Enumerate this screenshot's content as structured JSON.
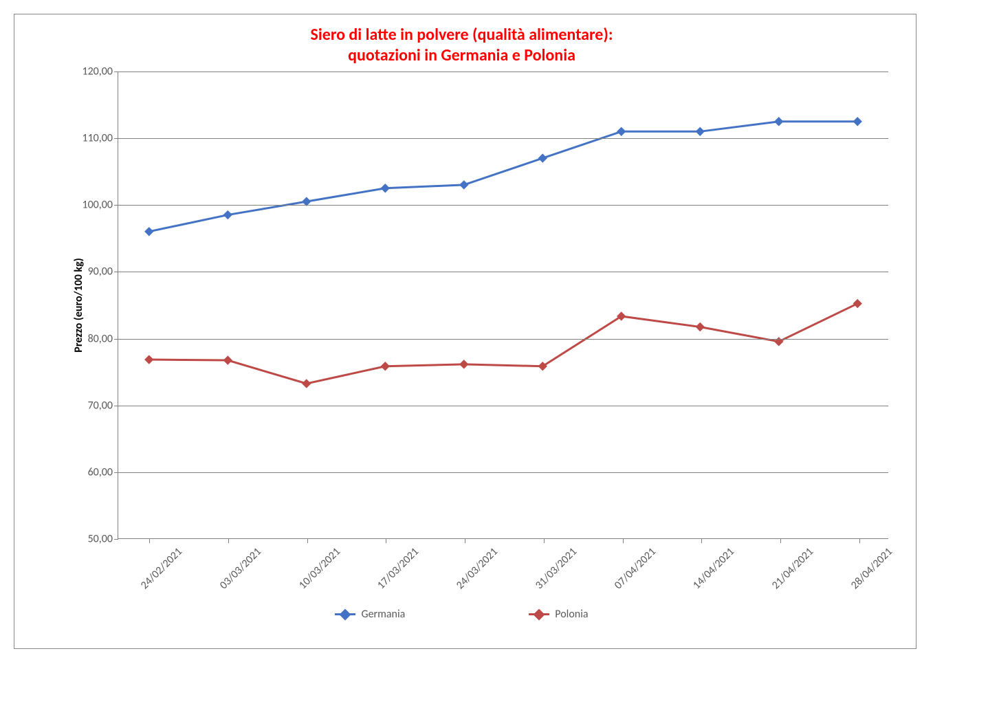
{
  "chart": {
    "type": "line",
    "title_line1": "Siero di latte in polvere (qualità alimentare):",
    "title_line2": "quotazioni in Germania e Polonia",
    "title_color": "#ff0000",
    "title_fontsize": 24,
    "background_color": "#ffffff",
    "border_color": "#888888",
    "grid_color": "#808080",
    "axis_font_color": "#595959",
    "y_axis": {
      "label": "Prezzo (euro/100 kg)",
      "label_fontsize": 16,
      "min": 50,
      "max": 120,
      "tick_step": 10,
      "ticks": [
        "50,00",
        "60,00",
        "70,00",
        "80,00",
        "90,00",
        "100,00",
        "110,00",
        "120,00"
      ],
      "tick_fontsize": 16
    },
    "x_axis": {
      "categories": [
        "24/02/2021",
        "03/03/2021",
        "10/03/2021",
        "17/03/2021",
        "24/03/2021",
        "31/03/2021",
        "07/04/2021",
        "14/04/2021",
        "21/04/2021",
        "28/04/2021"
      ],
      "tick_fontsize": 16,
      "rotation": -45
    },
    "series": [
      {
        "name": "Germania",
        "color": "#4473c5",
        "values": [
          96.0,
          98.5,
          100.5,
          102.5,
          103.0,
          107.0,
          111.0,
          111.0,
          112.5,
          112.5
        ],
        "line_width": 3,
        "marker": "diamond",
        "marker_size": 12
      },
      {
        "name": "Polonia",
        "color": "#bd4a47",
        "values": [
          76.8,
          76.7,
          73.2,
          75.8,
          76.1,
          75.8,
          83.3,
          81.7,
          79.5,
          85.2
        ],
        "line_width": 3,
        "marker": "diamond",
        "marker_size": 12
      }
    ],
    "legend": {
      "position": "bottom",
      "fontsize": 16
    }
  }
}
